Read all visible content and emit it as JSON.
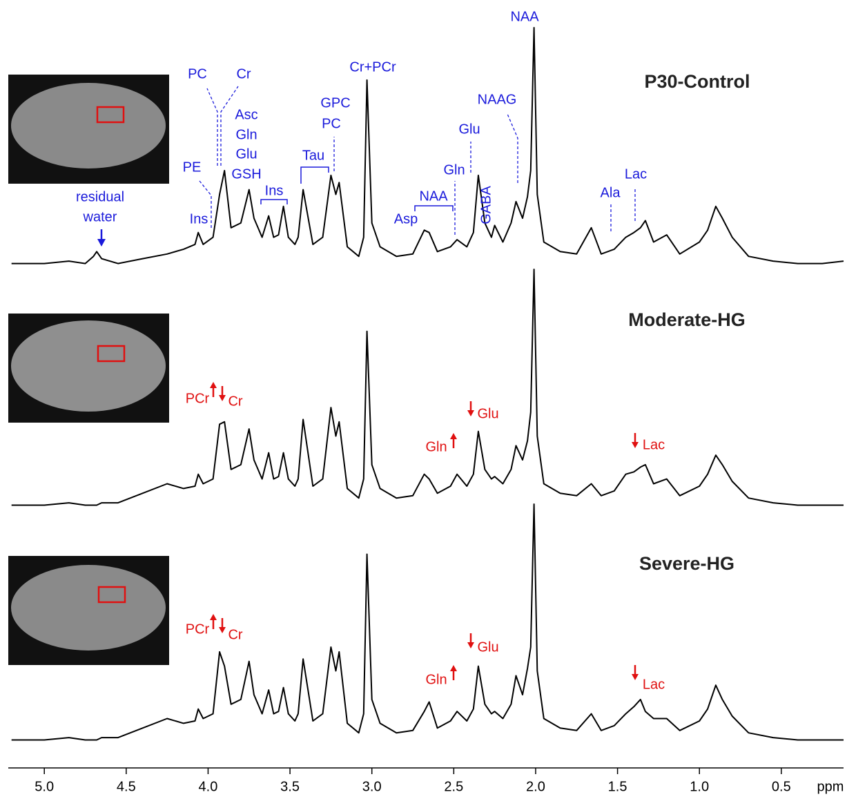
{
  "chart_data": {
    "type": "line",
    "x_label": "ppm",
    "xlim": [
      5.22,
      0.12
    ],
    "xticks": [
      {
        "value": 5.0,
        "label": "5.0"
      },
      {
        "value": 4.5,
        "label": "4.5"
      },
      {
        "value": 4.0,
        "label": "4.0"
      },
      {
        "value": 3.5,
        "label": "3.5"
      },
      {
        "value": 3.0,
        "label": "3.0"
      },
      {
        "value": 2.5,
        "label": "2.5"
      },
      {
        "value": 2.0,
        "label": "2.0"
      },
      {
        "value": 1.5,
        "label": "1.5"
      },
      {
        "value": 1.0,
        "label": "1.0"
      },
      {
        "value": 0.5,
        "label": "0.5"
      }
    ],
    "ylim": [
      0,
      100
    ],
    "x": [
      5.2,
      5.0,
      4.85,
      4.75,
      4.7,
      4.68,
      4.65,
      4.55,
      4.4,
      4.25,
      4.15,
      4.08,
      4.06,
      4.03,
      3.97,
      3.93,
      3.9,
      3.86,
      3.8,
      3.75,
      3.72,
      3.67,
      3.63,
      3.6,
      3.57,
      3.54,
      3.51,
      3.47,
      3.45,
      3.42,
      3.36,
      3.3,
      3.25,
      3.22,
      3.2,
      3.15,
      3.08,
      3.05,
      3.03,
      3.0,
      2.95,
      2.85,
      2.75,
      2.68,
      2.65,
      2.6,
      2.52,
      2.48,
      2.42,
      2.38,
      2.35,
      2.31,
      2.27,
      2.25,
      2.2,
      2.15,
      2.12,
      2.08,
      2.05,
      2.03,
      2.01,
      1.99,
      1.95,
      1.85,
      1.75,
      1.66,
      1.6,
      1.52,
      1.45,
      1.4,
      1.36,
      1.33,
      1.28,
      1.2,
      1.12,
      1.0,
      0.95,
      0.9,
      0.86,
      0.8,
      0.7,
      0.55,
      0.4,
      0.25,
      0.12
    ],
    "series": [
      {
        "name": "P30-Control",
        "color": "#000000",
        "values": [
          1,
          1,
          2,
          1,
          4,
          6,
          3,
          1,
          3,
          5,
          7,
          9,
          14,
          9,
          12,
          30,
          40,
          16,
          18,
          32,
          20,
          12,
          21,
          12,
          13,
          25,
          12,
          9,
          12,
          32,
          9,
          12,
          38,
          30,
          35,
          8,
          4,
          12,
          78,
          18,
          8,
          4,
          5,
          15,
          14,
          6,
          8,
          11,
          8,
          14,
          38,
          18,
          12,
          17,
          10,
          18,
          27,
          20,
          29,
          40,
          100,
          30,
          10,
          6,
          5,
          16,
          5,
          7,
          12,
          14,
          16,
          19,
          10,
          13,
          5,
          10,
          15,
          25,
          20,
          12,
          4,
          2,
          1,
          1,
          2
        ],
        "annotations": [
          "NAA",
          "Cr+PCr",
          "GPC",
          "PC",
          "PC",
          "Cr",
          "Asc",
          "Gln",
          "Glu",
          "GSH",
          "PE",
          "Ins",
          "Ins",
          "Tau",
          "NAAG",
          "Glu",
          "Gln",
          "GABA",
          "NAA",
          "Asp",
          "Ala",
          "Lac",
          "residual",
          "water"
        ]
      },
      {
        "name": "Moderate-HG",
        "color": "#000000",
        "values": [
          1,
          1,
          2,
          1,
          1,
          1,
          2,
          2,
          6,
          10,
          8,
          9,
          14,
          10,
          12,
          35,
          36,
          16,
          18,
          33,
          20,
          12,
          23,
          12,
          13,
          23,
          12,
          9,
          12,
          37,
          9,
          12,
          42,
          30,
          36,
          8,
          4,
          12,
          74,
          18,
          8,
          4,
          5,
          14,
          12,
          6,
          9,
          14,
          9,
          14,
          32,
          16,
          12,
          13,
          10,
          16,
          26,
          20,
          28,
          40,
          100,
          30,
          10,
          6,
          5,
          10,
          5,
          7,
          14,
          15,
          17,
          18,
          10,
          12,
          5,
          9,
          14,
          22,
          18,
          11,
          4,
          2,
          1,
          1,
          1
        ],
        "annotations": [
          "PCr",
          "Cr",
          "Glu",
          "Gln",
          "Lac"
        ]
      },
      {
        "name": "Severe-HG",
        "color": "#000000",
        "values": [
          1,
          1,
          2,
          1,
          1,
          1,
          2,
          2,
          6,
          10,
          8,
          9,
          14,
          10,
          12,
          38,
          32,
          16,
          18,
          34,
          20,
          12,
          22,
          12,
          13,
          23,
          12,
          9,
          12,
          35,
          9,
          12,
          40,
          30,
          38,
          8,
          4,
          12,
          79,
          18,
          8,
          4,
          5,
          13,
          17,
          6,
          9,
          13,
          9,
          14,
          32,
          16,
          12,
          13,
          10,
          16,
          28,
          20,
          31,
          40,
          100,
          30,
          10,
          6,
          5,
          12,
          5,
          7,
          12,
          15,
          18,
          13,
          10,
          10,
          5,
          9,
          14,
          24,
          18,
          11,
          4,
          2,
          1,
          1,
          1
        ],
        "annotations": [
          "PCr",
          "Cr",
          "Glu",
          "Gln",
          "Lac"
        ]
      }
    ]
  }
}
